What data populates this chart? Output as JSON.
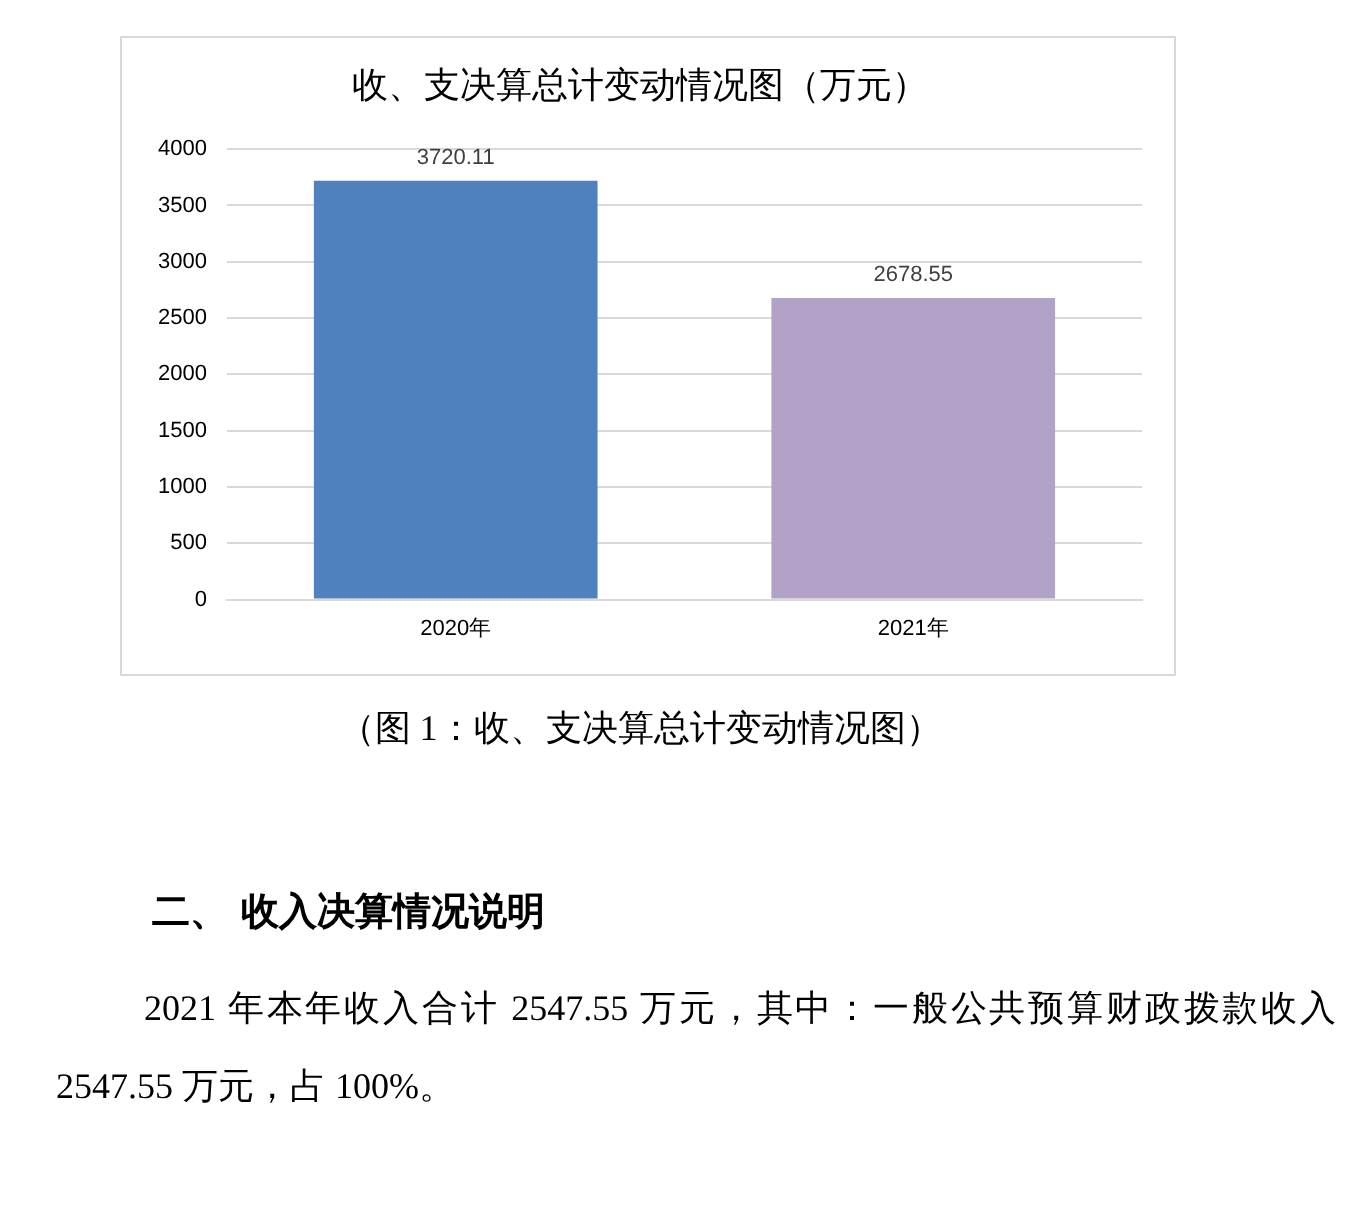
{
  "chart_data": {
    "type": "bar",
    "title": "收、支决算总计变动情况图（万元）",
    "categories": [
      "2020年",
      "2021年"
    ],
    "values": [
      3720.11,
      2678.55
    ],
    "colors": [
      "#4f81bd",
      "#b3a2c7"
    ],
    "ylim": [
      0,
      4000
    ],
    "yticks": [
      0,
      500,
      1000,
      1500,
      2000,
      2500,
      3000,
      3500,
      4000
    ],
    "grid": "y",
    "data_labels": true,
    "legend": false,
    "annotations": [
      "（图 1：收、支决算总计变动情况图）",
      "二、 收入决算情况说明",
      "2021 年本年收入合计 2547.55 万元，其中：一般公共预算财政拨款收入 2547.55 万元，占 100%。"
    ]
  }
}
